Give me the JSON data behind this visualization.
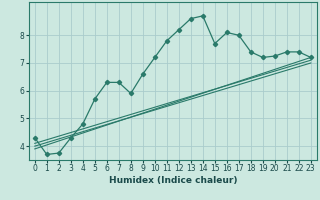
{
  "xlabel": "Humidex (Indice chaleur)",
  "ylabel": "",
  "bg_color": "#cce8e0",
  "grid_color": "#aacccc",
  "line_color": "#2a7a6a",
  "x_ticks": [
    0,
    1,
    2,
    3,
    4,
    5,
    6,
    7,
    8,
    9,
    10,
    11,
    12,
    13,
    14,
    15,
    16,
    17,
    18,
    19,
    20,
    21,
    22,
    23
  ],
  "ylim": [
    3.5,
    9.2
  ],
  "xlim": [
    -0.5,
    23.5
  ],
  "y_ticks": [
    4,
    5,
    6,
    7,
    8
  ],
  "line1_x": [
    0,
    1,
    2,
    3,
    4,
    5,
    6,
    7,
    8,
    9,
    10,
    11,
    12,
    13,
    14,
    15,
    16,
    17,
    18,
    19,
    20,
    21,
    22,
    23
  ],
  "line1_y": [
    4.3,
    3.7,
    3.75,
    4.3,
    4.8,
    5.7,
    6.3,
    6.3,
    5.9,
    6.6,
    7.2,
    7.8,
    8.2,
    8.6,
    8.7,
    7.7,
    8.1,
    8.0,
    7.4,
    7.2,
    7.25,
    7.4,
    7.4,
    7.2
  ],
  "line2_x": [
    0,
    23
  ],
  "line2_y": [
    4.1,
    7.1
  ],
  "line3_x": [
    0,
    23
  ],
  "line3_y": [
    4.0,
    7.0
  ],
  "line4_x": [
    0,
    23
  ],
  "line4_y": [
    3.9,
    7.2
  ],
  "tick_fontsize": 5.5,
  "label_fontsize": 6.5
}
